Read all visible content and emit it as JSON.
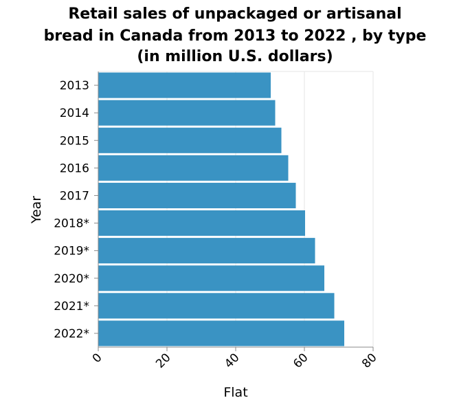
{
  "chart_data": {
    "type": "bar",
    "orientation": "horizontal",
    "title": "Retail sales of unpackaged or artisanal bread in Canada from 2013 to 2022 , by type (in million U.S. dollars)",
    "title_lines": [
      "Retail sales of unpackaged or artisanal",
      "bread in Canada from 2013 to 2022 , by type",
      "(in million U.S. dollars)"
    ],
    "xlabel": "Flat",
    "ylabel": "Year",
    "categories": [
      "2013",
      "2014",
      "2015",
      "2016",
      "2017",
      "2018*",
      "2019*",
      "2020*",
      "2021*",
      "2022*"
    ],
    "series": [
      {
        "values": [
          50.2,
          51.5,
          53.3,
          55.3,
          57.5,
          60.2,
          63.1,
          65.8,
          68.7,
          71.6
        ]
      }
    ],
    "xlim": [
      0,
      80
    ],
    "xticks": [
      "0",
      "20",
      "40",
      "60",
      "80"
    ],
    "grid": true,
    "colors": {
      "bar": "#3a93c3",
      "grid": "#e6e6e6",
      "axis": "#888888"
    }
  }
}
